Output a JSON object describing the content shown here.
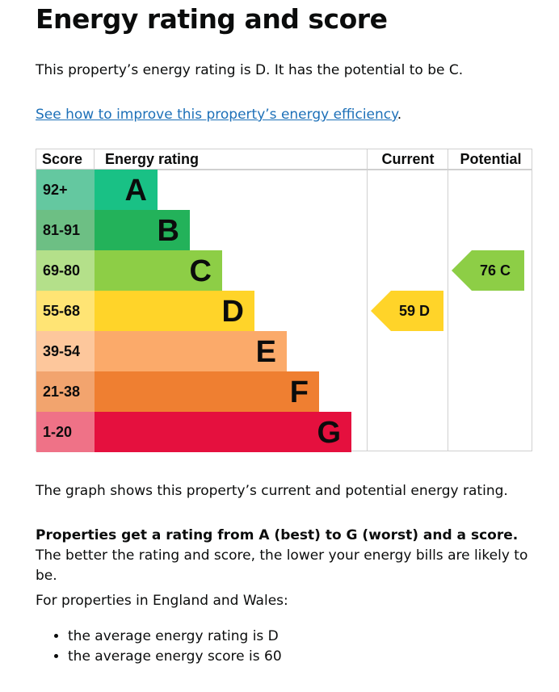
{
  "title": "Energy rating and score",
  "intro": "This property’s energy rating is D. It has the potential to be C.",
  "link": "See how to improve this property’s energy efficiency",
  "link_suffix": ".",
  "table": {
    "headers": {
      "score": "Score",
      "rating": "Energy rating",
      "current": "Current",
      "potential": "Potential"
    },
    "bands": [
      {
        "score": "92+",
        "letter": "A",
        "color": "#19c185",
        "score_color": "#64c8a0"
      },
      {
        "score": "81-91",
        "letter": "B",
        "color": "#23b25a",
        "score_color": "#6dbf84"
      },
      {
        "score": "69-80",
        "letter": "C",
        "color": "#8dce46",
        "score_color": "#b4e08a"
      },
      {
        "score": "55-68",
        "letter": "D",
        "color": "#ffd429",
        "score_color": "#ffe474"
      },
      {
        "score": "39-54",
        "letter": "E",
        "color": "#fbaa6a",
        "score_color": "#fdc79c"
      },
      {
        "score": "21-38",
        "letter": "F",
        "color": "#ef7f31",
        "score_color": "#f2a46e"
      },
      {
        "score": "1-20",
        "letter": "G",
        "color": "#e5103e",
        "score_color": "#ef7287"
      }
    ],
    "current": {
      "label": "59 D",
      "score": 59,
      "band": "D",
      "color": "#ffd429"
    },
    "potential": {
      "label": "76 C",
      "score": 76,
      "band": "C",
      "color": "#8dce46"
    }
  },
  "graph_note": "The graph shows this property’s current and potential energy rating.",
  "rating_bold": "Properties get a rating from A (best) to G (worst) and a score.",
  "rating_rest": " The better the rating and score, the lower your energy bills are likely to be.",
  "england": "For properties in England and Wales:",
  "bullets": [
    "the average energy rating is D",
    "the average energy score is 60"
  ]
}
